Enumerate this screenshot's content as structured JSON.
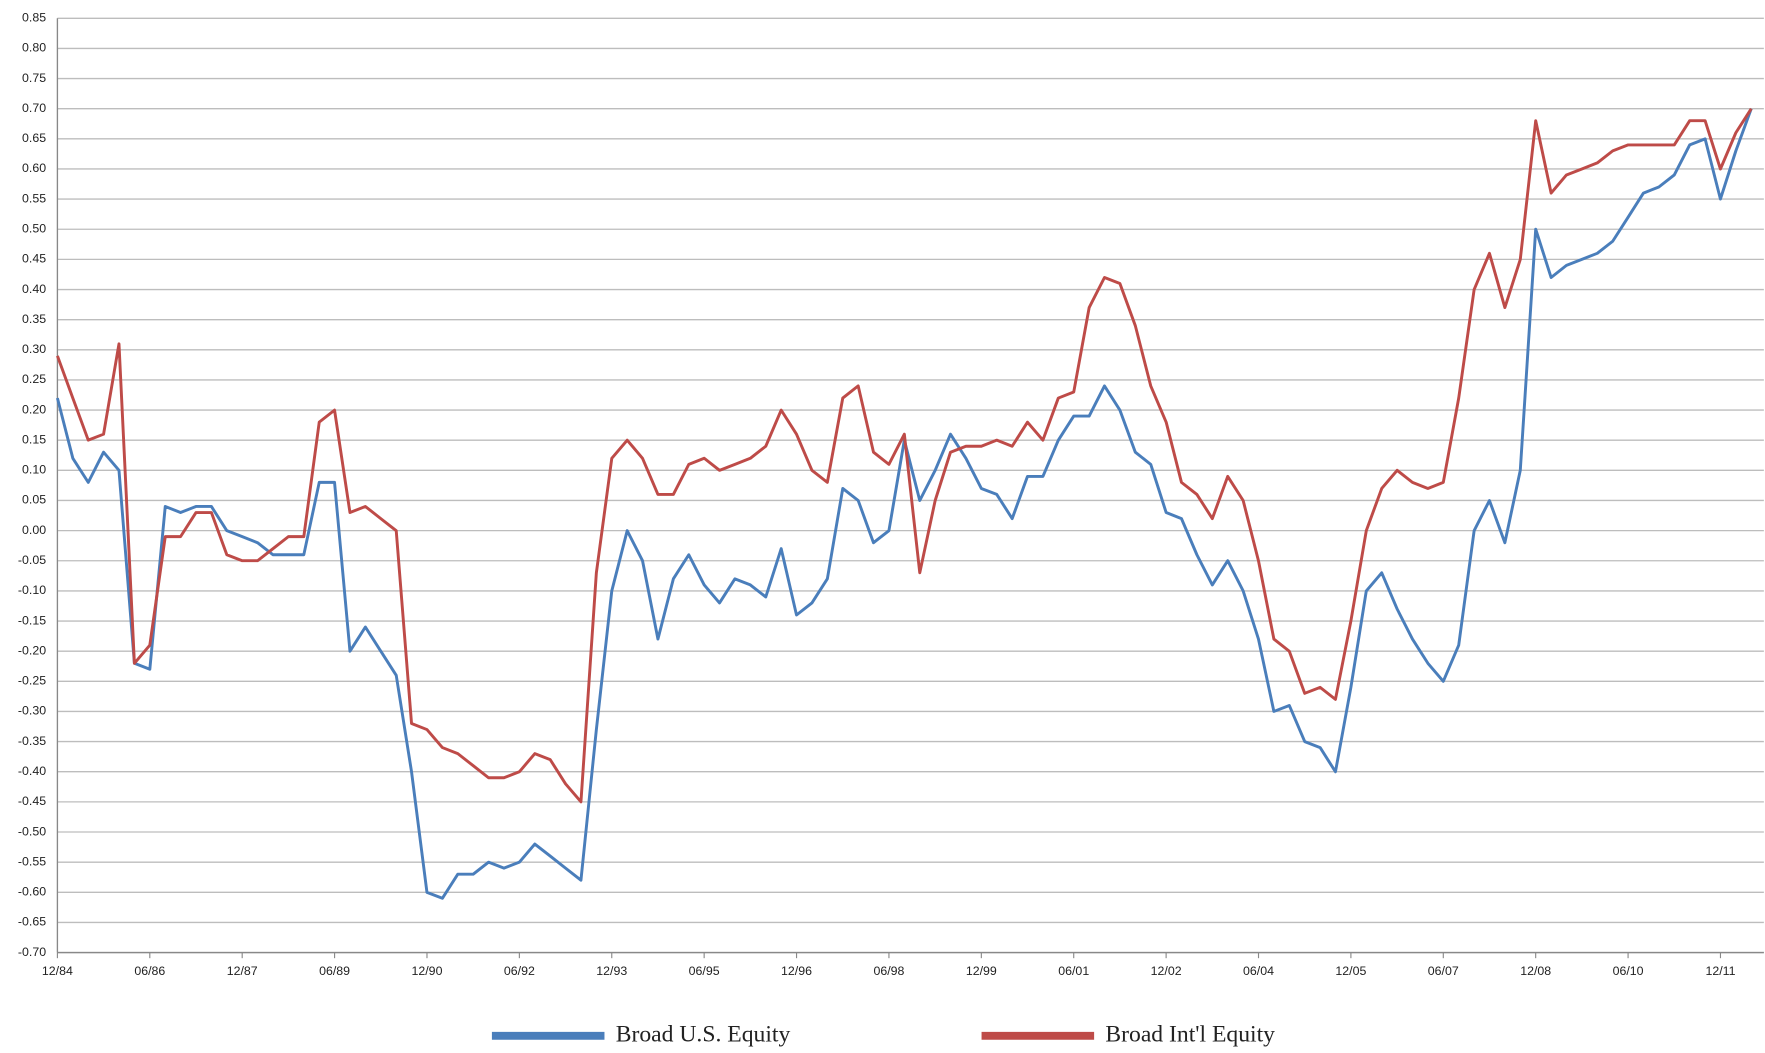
{
  "chart_data": {
    "type": "line",
    "categories": [
      "12/84",
      null,
      null,
      null,
      null,
      null,
      "06/86",
      null,
      null,
      null,
      null,
      null,
      "12/87",
      null,
      null,
      null,
      null,
      null,
      "06/89",
      null,
      null,
      null,
      null,
      null,
      "12/90",
      null,
      null,
      null,
      null,
      null,
      "06/92",
      null,
      null,
      null,
      null,
      null,
      "12/93",
      null,
      null,
      null,
      null,
      null,
      "06/95",
      null,
      null,
      null,
      null,
      null,
      "12/96",
      null,
      null,
      null,
      null,
      null,
      "06/98",
      null,
      null,
      null,
      null,
      null,
      "12/99",
      null,
      null,
      null,
      null,
      null,
      "06/01",
      null,
      null,
      null,
      null,
      null,
      "12/02",
      null,
      null,
      null,
      null,
      null,
      "06/04",
      null,
      null,
      null,
      null,
      null,
      "12/05",
      null,
      null,
      null,
      null,
      null,
      "06/07",
      null,
      null,
      null,
      null,
      null,
      "12/08",
      null,
      null,
      null,
      null,
      null,
      "06/10",
      null,
      null,
      null,
      null,
      null,
      "12/11",
      null,
      null
    ],
    "series": [
      {
        "name": "Broad U.S. Equity",
        "color": "#4a7ebb",
        "values": [
          0.22,
          0.12,
          0.08,
          0.13,
          0.1,
          -0.22,
          -0.23,
          0.04,
          0.03,
          0.04,
          0.04,
          0.0,
          -0.01,
          -0.02,
          -0.04,
          -0.04,
          -0.04,
          0.08,
          0.08,
          -0.2,
          -0.16,
          -0.2,
          -0.24,
          -0.4,
          -0.6,
          -0.61,
          -0.57,
          -0.57,
          -0.55,
          -0.56,
          -0.55,
          -0.52,
          -0.54,
          -0.56,
          -0.58,
          -0.33,
          -0.1,
          0.0,
          -0.05,
          -0.18,
          -0.08,
          -0.04,
          -0.09,
          -0.12,
          -0.08,
          -0.09,
          -0.11,
          -0.03,
          -0.14,
          -0.12,
          -0.08,
          0.07,
          0.05,
          -0.02,
          0.0,
          0.15,
          0.05,
          0.1,
          0.16,
          0.12,
          0.07,
          0.06,
          0.02,
          0.09,
          0.09,
          0.15,
          0.19,
          0.19,
          0.24,
          0.2,
          0.13,
          0.11,
          0.03,
          0.02,
          -0.04,
          -0.09,
          -0.05,
          -0.1,
          -0.18,
          -0.3,
          -0.29,
          -0.35,
          -0.36,
          -0.4,
          -0.26,
          -0.1,
          -0.07,
          -0.13,
          -0.18,
          -0.22,
          -0.25,
          -0.19,
          0.0,
          0.05,
          -0.02,
          0.1,
          0.5,
          0.42,
          0.44,
          0.45,
          0.46,
          0.48,
          0.52,
          0.56,
          0.57,
          0.59,
          0.64,
          0.65,
          0.55,
          0.63,
          0.7
        ]
      },
      {
        "name": "Broad Int'l Equity",
        "color": "#be4b48",
        "values": [
          0.29,
          0.22,
          0.15,
          0.16,
          0.31,
          -0.22,
          -0.19,
          -0.01,
          -0.01,
          0.03,
          0.03,
          -0.04,
          -0.05,
          -0.05,
          -0.03,
          -0.01,
          -0.01,
          0.18,
          0.2,
          0.03,
          0.04,
          0.02,
          0.0,
          -0.32,
          -0.33,
          -0.36,
          -0.37,
          -0.39,
          -0.41,
          -0.41,
          -0.4,
          -0.37,
          -0.38,
          -0.42,
          -0.45,
          -0.07,
          0.12,
          0.15,
          0.12,
          0.06,
          0.06,
          0.11,
          0.12,
          0.1,
          0.11,
          0.12,
          0.14,
          0.2,
          0.16,
          0.1,
          0.08,
          0.22,
          0.24,
          0.13,
          0.11,
          0.16,
          -0.07,
          0.05,
          0.13,
          0.14,
          0.14,
          0.15,
          0.14,
          0.18,
          0.15,
          0.22,
          0.23,
          0.37,
          0.42,
          0.41,
          0.34,
          0.24,
          0.18,
          0.08,
          0.06,
          0.02,
          0.09,
          0.05,
          -0.05,
          -0.18,
          -0.2,
          -0.27,
          -0.26,
          -0.28,
          -0.15,
          0.0,
          0.07,
          0.1,
          0.08,
          0.07,
          0.08,
          0.22,
          0.4,
          0.46,
          0.37,
          0.45,
          0.68,
          0.56,
          0.59,
          0.6,
          0.61,
          0.63,
          0.64,
          0.64,
          0.64,
          0.64,
          0.68,
          0.68,
          0.6,
          0.66,
          0.7
        ]
      }
    ],
    "ylim": [
      -0.7,
      0.85
    ],
    "yticks": [
      {
        "value": 0.85,
        "label": "0.85"
      },
      {
        "value": 0.8,
        "label": "0.80"
      },
      {
        "value": 0.75,
        "label": "0.75"
      },
      {
        "value": 0.7,
        "label": "0.70"
      },
      {
        "value": 0.65,
        "label": "0.65"
      },
      {
        "value": 0.6,
        "label": "0.60"
      },
      {
        "value": 0.55,
        "label": "0.55"
      },
      {
        "value": 0.5,
        "label": "0.50"
      },
      {
        "value": 0.45,
        "label": "0.45"
      },
      {
        "value": 0.4,
        "label": "0.40"
      },
      {
        "value": 0.35,
        "label": "0.35"
      },
      {
        "value": 0.3,
        "label": "0.30"
      },
      {
        "value": 0.25,
        "label": "0.25"
      },
      {
        "value": 0.2,
        "label": "0.20"
      },
      {
        "value": 0.15,
        "label": "0.15"
      },
      {
        "value": 0.1,
        "label": "0.10"
      },
      {
        "value": 0.05,
        "label": "0.05"
      },
      {
        "value": 0.0,
        "label": "0.00"
      },
      {
        "value": -0.05,
        "label": "-0.05"
      },
      {
        "value": -0.1,
        "label": "-0.10"
      },
      {
        "value": -0.15,
        "label": "-0.15"
      },
      {
        "value": -0.2,
        "label": "-0.20"
      },
      {
        "value": -0.25,
        "label": "-0.25"
      },
      {
        "value": -0.3,
        "label": "-0.30"
      },
      {
        "value": -0.35,
        "label": "-0.35"
      },
      {
        "value": -0.4,
        "label": "-0.40"
      },
      {
        "value": -0.45,
        "label": "-0.45"
      },
      {
        "value": -0.5,
        "label": "-0.50"
      },
      {
        "value": -0.55,
        "label": "-0.55"
      },
      {
        "value": -0.6,
        "label": "-0.60"
      },
      {
        "value": -0.65,
        "label": "-0.65"
      },
      {
        "value": -0.7,
        "label": "-0.70"
      }
    ],
    "grid": true,
    "legend": "bottom"
  }
}
